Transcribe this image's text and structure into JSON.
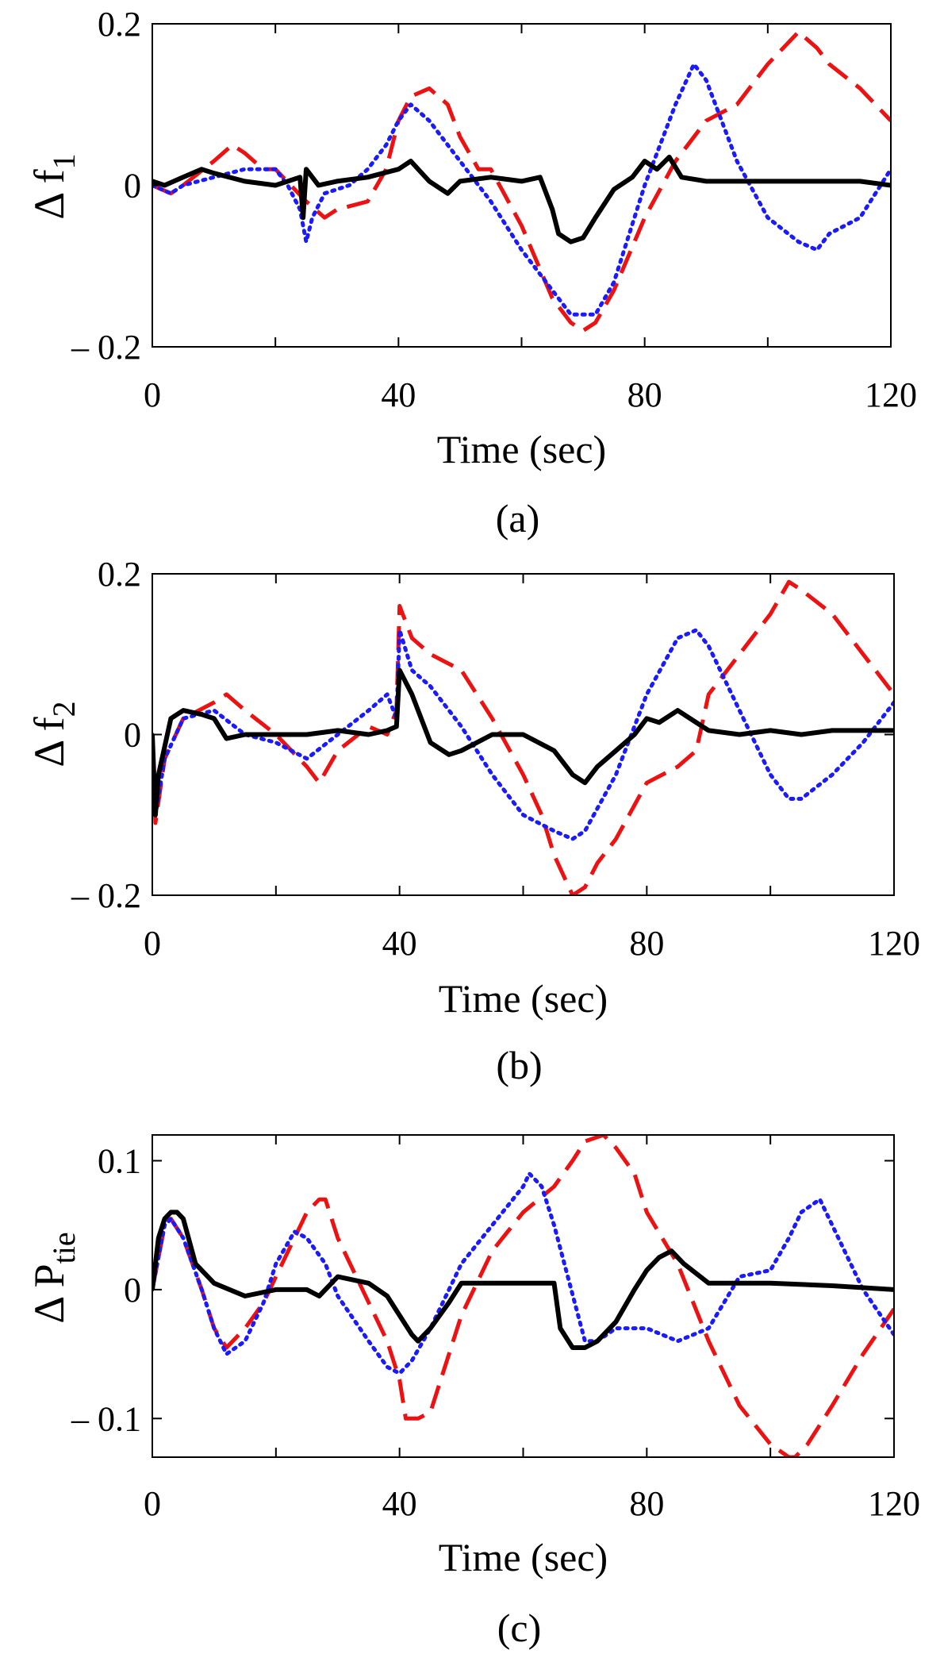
{
  "figure": {
    "panels": [
      {
        "caption": "(a)",
        "ylabel_main": "Δ f",
        "ylabel_sub": "1"
      },
      {
        "caption": "(b)",
        "ylabel_main": "Δ f",
        "ylabel_sub": "2"
      },
      {
        "caption": "(c)",
        "ylabel_main": "Δ P",
        "ylabel_sub": "tie"
      }
    ],
    "series_styles": [
      {
        "name": "solid",
        "color": "#000000"
      },
      {
        "name": "dotted",
        "color": "#1a1aff"
      },
      {
        "name": "dashed",
        "color": "#ee1111"
      }
    ]
  },
  "chart_data": [
    {
      "type": "line",
      "title": "(a)",
      "xlabel": "Time (sec)",
      "ylabel": "Δ f1",
      "xlim": [
        0,
        120
      ],
      "ylim": [
        -0.2,
        0.2
      ],
      "xticks": [
        0,
        40,
        80,
        120
      ],
      "yticks": [
        -0.2,
        0,
        0.2
      ],
      "ytick_labels": [
        "– 0.2",
        "0",
        "0.2"
      ],
      "series": [
        {
          "name": "solid",
          "color": "#000000",
          "x": [
            0,
            2,
            5,
            8,
            10,
            15,
            20,
            24,
            24.5,
            25,
            27,
            30,
            35,
            40,
            42,
            45,
            48,
            50,
            55,
            60,
            63,
            65,
            66,
            68,
            70,
            72,
            75,
            78,
            80,
            82,
            84,
            86,
            90,
            95,
            100,
            105,
            110,
            115,
            120
          ],
          "y": [
            0.005,
            0.0,
            0.01,
            0.02,
            0.015,
            0.005,
            0.0,
            0.01,
            -0.04,
            0.02,
            0.0,
            0.005,
            0.01,
            0.02,
            0.03,
            0.005,
            -0.01,
            0.005,
            0.01,
            0.005,
            0.01,
            -0.03,
            -0.06,
            -0.07,
            -0.065,
            -0.04,
            -0.005,
            0.01,
            0.03,
            0.02,
            0.035,
            0.01,
            0.005,
            0.005,
            0.005,
            0.005,
            0.005,
            0.005,
            0.0
          ]
        },
        {
          "name": "dotted",
          "color": "#1a1aff",
          "x": [
            0,
            3,
            5,
            10,
            15,
            20,
            22,
            24,
            25,
            26,
            28,
            32,
            35,
            38,
            40,
            42,
            45,
            50,
            55,
            60,
            65,
            68,
            72,
            75,
            80,
            85,
            88,
            90,
            95,
            100,
            105,
            108,
            110,
            115,
            120
          ],
          "y": [
            0.0,
            -0.01,
            0.0,
            0.01,
            0.02,
            0.02,
            0.0,
            -0.03,
            -0.07,
            -0.04,
            -0.01,
            0.0,
            0.02,
            0.05,
            0.08,
            0.1,
            0.08,
            0.03,
            -0.02,
            -0.08,
            -0.13,
            -0.16,
            -0.16,
            -0.12,
            0.0,
            0.1,
            0.15,
            0.13,
            0.03,
            -0.04,
            -0.07,
            -0.08,
            -0.06,
            -0.04,
            0.02
          ]
        },
        {
          "name": "dashed",
          "color": "#ee1111",
          "x": [
            0,
            3,
            5,
            10,
            13,
            15,
            18,
            20,
            25,
            28,
            30,
            35,
            38,
            40,
            42,
            45,
            48,
            50,
            53,
            55,
            60,
            65,
            68,
            70,
            72,
            75,
            80,
            85,
            90,
            95,
            100,
            105,
            108,
            110,
            115,
            120
          ],
          "y": [
            0.0,
            -0.01,
            0.0,
            0.03,
            0.05,
            0.04,
            0.02,
            0.02,
            -0.02,
            -0.04,
            -0.03,
            -0.02,
            0.02,
            0.08,
            0.11,
            0.12,
            0.1,
            0.06,
            0.02,
            0.02,
            -0.05,
            -0.14,
            -0.17,
            -0.18,
            -0.17,
            -0.13,
            -0.04,
            0.03,
            0.08,
            0.1,
            0.15,
            0.19,
            0.17,
            0.15,
            0.12,
            0.08
          ]
        }
      ]
    },
    {
      "type": "line",
      "title": "(b)",
      "xlabel": "Time (sec)",
      "ylabel": "Δ f2",
      "xlim": [
        0,
        120
      ],
      "ylim": [
        -0.2,
        0.2
      ],
      "xticks": [
        0,
        40,
        80,
        120
      ],
      "yticks": [
        -0.2,
        0,
        0.2
      ],
      "ytick_labels": [
        "– 0.2",
        "0",
        "0.2"
      ],
      "series": [
        {
          "name": "solid",
          "color": "#000000",
          "x": [
            0,
            0.5,
            1,
            3,
            5,
            8,
            10,
            12,
            15,
            20,
            25,
            30,
            35,
            38,
            39.5,
            40,
            42,
            45,
            48,
            50,
            55,
            60,
            65,
            68,
            70,
            72,
            75,
            78,
            80,
            82,
            85,
            88,
            90,
            95,
            100,
            105,
            110,
            115,
            120
          ],
          "y": [
            0.0,
            -0.1,
            -0.05,
            0.02,
            0.03,
            0.025,
            0.02,
            -0.005,
            0.0,
            0.0,
            0.0,
            0.005,
            0.0,
            0.005,
            0.01,
            0.08,
            0.05,
            -0.01,
            -0.025,
            -0.02,
            0.0,
            0.0,
            -0.02,
            -0.05,
            -0.06,
            -0.04,
            -0.02,
            0.0,
            0.02,
            0.015,
            0.03,
            0.015,
            0.005,
            0.0,
            0.005,
            0.0,
            0.005,
            0.005,
            0.005
          ]
        },
        {
          "name": "dotted",
          "color": "#1a1aff",
          "x": [
            0,
            0.5,
            2,
            5,
            10,
            15,
            20,
            25,
            30,
            35,
            38,
            39.5,
            40,
            42,
            45,
            50,
            55,
            60,
            65,
            68,
            70,
            75,
            80,
            85,
            88,
            90,
            95,
            100,
            103,
            105,
            110,
            115,
            120
          ],
          "y": [
            0.0,
            -0.1,
            -0.03,
            0.02,
            0.03,
            0.0,
            -0.01,
            -0.03,
            0.0,
            0.03,
            0.05,
            0.02,
            0.13,
            0.08,
            0.06,
            0.01,
            -0.05,
            -0.1,
            -0.12,
            -0.13,
            -0.12,
            -0.05,
            0.05,
            0.12,
            0.13,
            0.11,
            0.03,
            -0.05,
            -0.08,
            -0.08,
            -0.05,
            -0.01,
            0.04
          ]
        },
        {
          "name": "dashed",
          "color": "#ee1111",
          "x": [
            0,
            0.5,
            2,
            5,
            10,
            12,
            15,
            20,
            25,
            27,
            30,
            35,
            38,
            39.5,
            40,
            42,
            45,
            50,
            55,
            60,
            63,
            65,
            68,
            70,
            72,
            75,
            80,
            85,
            88,
            90,
            95,
            100,
            103,
            105,
            110,
            115,
            120
          ],
          "y": [
            0.0,
            -0.11,
            -0.03,
            0.02,
            0.04,
            0.05,
            0.03,
            0.0,
            -0.04,
            -0.06,
            -0.02,
            0.01,
            0.0,
            0.03,
            0.16,
            0.12,
            0.1,
            0.08,
            0.02,
            -0.05,
            -0.1,
            -0.15,
            -0.2,
            -0.19,
            -0.16,
            -0.13,
            -0.06,
            -0.04,
            -0.02,
            0.05,
            0.1,
            0.15,
            0.19,
            0.18,
            0.15,
            0.1,
            0.05
          ]
        }
      ]
    },
    {
      "type": "line",
      "title": "(c)",
      "xlabel": "Time (sec)",
      "ylabel": "Δ Ptie",
      "xlim": [
        0,
        120
      ],
      "ylim": [
        -0.13,
        0.12
      ],
      "xticks": [
        0,
        40,
        80,
        120
      ],
      "yticks": [
        -0.1,
        0,
        0.1
      ],
      "ytick_labels": [
        "– 0.1",
        "0",
        "0.1"
      ],
      "series": [
        {
          "name": "solid",
          "color": "#000000",
          "x": [
            0,
            1,
            2,
            3,
            4,
            5,
            7,
            10,
            15,
            20,
            25,
            27,
            30,
            35,
            38,
            40,
            42,
            43,
            45,
            48,
            50,
            55,
            60,
            63,
            65,
            66,
            68,
            70,
            72,
            75,
            78,
            80,
            82,
            84,
            86,
            90,
            95,
            100,
            110,
            120
          ],
          "y": [
            0.0,
            0.04,
            0.055,
            0.06,
            0.06,
            0.055,
            0.02,
            0.005,
            -0.005,
            0.0,
            0.0,
            -0.005,
            0.01,
            0.005,
            -0.005,
            -0.02,
            -0.035,
            -0.04,
            -0.03,
            -0.01,
            0.005,
            0.005,
            0.005,
            0.005,
            0.005,
            -0.03,
            -0.045,
            -0.045,
            -0.04,
            -0.025,
            0.0,
            0.015,
            0.025,
            0.03,
            0.02,
            0.005,
            0.005,
            0.005,
            0.003,
            0.0
          ]
        },
        {
          "name": "dotted",
          "color": "#1a1aff",
          "x": [
            0,
            2,
            3,
            5,
            8,
            10,
            12,
            15,
            18,
            20,
            23,
            25,
            28,
            30,
            35,
            38,
            40,
            42,
            45,
            48,
            50,
            55,
            60,
            61,
            63,
            65,
            70,
            72,
            75,
            80,
            85,
            90,
            95,
            100,
            103,
            105,
            108,
            110,
            115,
            120
          ],
          "y": [
            0.0,
            0.05,
            0.055,
            0.04,
            0.0,
            -0.03,
            -0.05,
            -0.04,
            -0.01,
            0.02,
            0.045,
            0.04,
            0.02,
            -0.005,
            -0.04,
            -0.06,
            -0.065,
            -0.055,
            -0.03,
            0.0,
            0.02,
            0.05,
            0.08,
            0.09,
            0.08,
            0.05,
            -0.04,
            -0.04,
            -0.03,
            -0.03,
            -0.04,
            -0.03,
            0.01,
            0.015,
            0.04,
            0.06,
            0.07,
            0.05,
            0.0,
            -0.035
          ]
        },
        {
          "name": "dashed",
          "color": "#ee1111",
          "x": [
            0,
            2,
            3,
            5,
            8,
            10,
            12,
            15,
            18,
            20,
            23,
            25,
            27,
            28,
            30,
            35,
            38,
            40,
            41,
            43,
            45,
            50,
            55,
            60,
            65,
            68,
            70,
            73,
            75,
            78,
            80,
            85,
            90,
            95,
            100,
            103,
            104,
            106,
            110,
            115,
            120
          ],
          "y": [
            0.0,
            0.05,
            0.055,
            0.04,
            0.0,
            -0.03,
            -0.045,
            -0.03,
            -0.01,
            0.01,
            0.04,
            0.06,
            0.07,
            0.07,
            0.04,
            -0.01,
            -0.04,
            -0.07,
            -0.1,
            -0.1,
            -0.095,
            -0.02,
            0.03,
            0.06,
            0.08,
            0.1,
            0.115,
            0.12,
            0.11,
            0.09,
            0.06,
            0.02,
            -0.04,
            -0.09,
            -0.12,
            -0.13,
            -0.13,
            -0.12,
            -0.09,
            -0.05,
            -0.015
          ]
        }
      ]
    }
  ]
}
